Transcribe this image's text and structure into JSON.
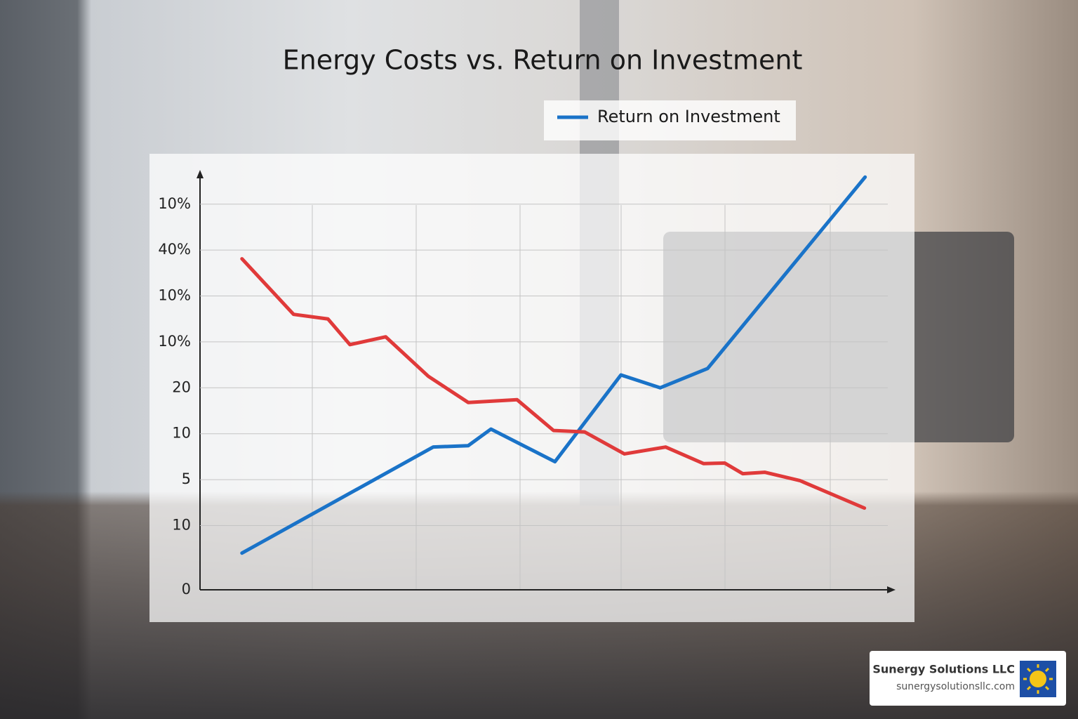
{
  "chart_data": {
    "type": "line",
    "title": "Energy Costs vs. Return on Investment",
    "xlim": [
      0,
      100
    ],
    "ylim": [
      0,
      9.1
    ],
    "yticks": [
      0,
      {
        "value": 1.4,
        "label": "10"
      },
      {
        "value": 2.4,
        "label": "5"
      },
      {
        "value": 3.4,
        "label": "10"
      },
      {
        "value": 4.4,
        "label": "20"
      },
      {
        "value": 5.4,
        "label": "10%"
      },
      {
        "value": 6.4,
        "label": "10%"
      },
      {
        "value": 7.4,
        "label": "40%"
      },
      {
        "value": 8.4,
        "label": "10%"
      }
    ],
    "grid": true,
    "series": [
      {
        "name": "Return on Investment",
        "color": "#1a73c8",
        "x": [
          6.1,
          33.9,
          39.0,
          42.3,
          51.6,
          61.2,
          66.9,
          73.8,
          96.7
        ],
        "values": [
          0.8,
          3.11,
          3.14,
          3.5,
          2.79,
          4.68,
          4.4,
          4.82,
          8.99
        ]
      },
      {
        "color": "#e03a3a",
        "x": [
          6.1,
          13.6,
          18.6,
          21.8,
          27.0,
          33.2,
          39.0,
          46.1,
          51.4,
          55.9,
          61.7,
          67.7,
          73.2,
          76.3,
          78.9,
          82.1,
          87.2,
          96.6
        ],
        "values": [
          7.21,
          6.0,
          5.9,
          5.34,
          5.51,
          4.65,
          4.08,
          4.14,
          3.47,
          3.44,
          2.96,
          3.11,
          2.75,
          2.76,
          2.53,
          2.56,
          2.38,
          1.78
        ]
      }
    ]
  },
  "brand": {
    "name": "Sunergy Solutions LLC",
    "url": "sunergysolutionsllc.com"
  }
}
